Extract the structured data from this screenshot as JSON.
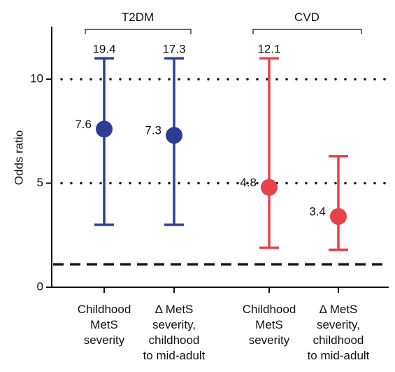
{
  "chart_data": {
    "type": "scatter",
    "subtype": "forest-plot / odds ratio with confidence intervals",
    "ylabel": "Odds ratio",
    "ylim": [
      0,
      12.5
    ],
    "yticks": [
      0,
      5,
      10
    ],
    "ytick_labels": [
      "0",
      "5",
      "10"
    ],
    "groups": [
      {
        "label": "T2DM",
        "color": "#2e3d94"
      },
      {
        "label": "CVD",
        "color": "#e8414a"
      }
    ],
    "points": [
      {
        "group": 0,
        "label_lines": [
          "Childhood",
          "MetS",
          "severity"
        ],
        "value": 7.6,
        "value_label": "7.6",
        "ci_low": 3.0,
        "ci_high": 11.0,
        "ci_high_label": "19.4"
      },
      {
        "group": 0,
        "label_lines": [
          "Δ MetS",
          "severity,",
          "childhood",
          "to mid-adult"
        ],
        "value": 7.3,
        "value_label": "7.3",
        "ci_low": 3.0,
        "ci_high": 11.0,
        "ci_high_label": "17.3"
      },
      {
        "group": 1,
        "label_lines": [
          "Childhood",
          "MetS",
          "severity"
        ],
        "value": 4.8,
        "value_label": "4.8",
        "ci_low": 1.9,
        "ci_high": 11.0,
        "ci_high_label": "12.1"
      },
      {
        "group": 1,
        "label_lines": [
          "Δ MetS",
          "severity,",
          "childhood",
          "to mid-adult"
        ],
        "value": 3.4,
        "value_label": "3.4",
        "ci_low": 1.8,
        "ci_high": 6.3,
        "ci_high_label": ""
      }
    ],
    "reference_lines": [
      {
        "y": 10,
        "style": "dotted"
      },
      {
        "y": 5,
        "style": "dotted"
      },
      {
        "y": 1.1,
        "style": "dashed"
      }
    ],
    "grid": false,
    "legend": "none"
  }
}
